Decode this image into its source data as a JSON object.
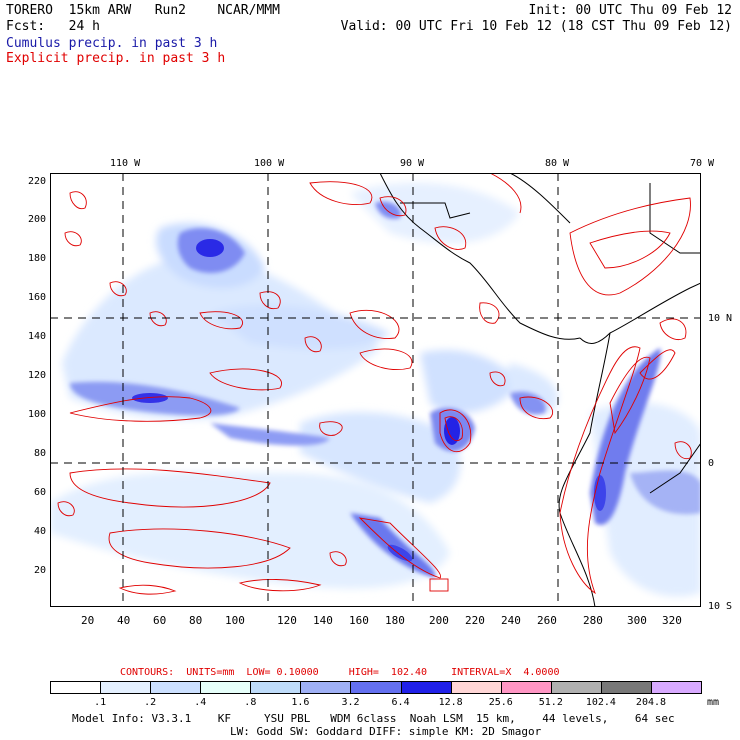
{
  "header": {
    "line1_left": "TORERO  15km ARW   Run2    NCAR/MMM",
    "line1_right": "Init: 00 UTC Thu 09 Feb 12",
    "line2_left": "Fcst:   24 h",
    "line2_right": "Valid: 00 UTC Fri 10 Feb 12 (18 CST Thu 09 Feb 12)",
    "cumulus_label": "Cumulus precip. in past 3 h",
    "explicit_label": "Explicit precip. in past 3 h"
  },
  "map": {
    "lon_labels": [
      "110 W",
      "100 W",
      "90 W",
      "80 W",
      "70 W"
    ],
    "lat_labels": [
      "10 N",
      "0",
      "10 S"
    ],
    "y_ticks": [
      "220",
      "200",
      "180",
      "160",
      "140",
      "120",
      "100",
      "80",
      "60",
      "40",
      "20"
    ],
    "x_ticks": [
      "20",
      "40",
      "60",
      "80",
      "100",
      "120",
      "140",
      "160",
      "180",
      "200",
      "220",
      "240",
      "260",
      "280",
      "300",
      "320"
    ],
    "colors": {
      "land_outline": "#000000",
      "contour": "#e00000",
      "grid": "#000000"
    }
  },
  "contour_info": "CONTOURS:  UNITS=mm  LOW= 0.10000     HIGH=  102.40    INTERVAL=X  4.0000",
  "colorbar": {
    "unit": "mm",
    "labels": [
      ".1",
      ".2",
      ".4",
      ".8",
      "1.6",
      "3.2",
      "6.4",
      "12.8",
      "25.6",
      "51.2",
      "102.4",
      "204.8"
    ],
    "colors": [
      "#ffffff",
      "#e4f0ff",
      "#cce0ff",
      "#e6fffa",
      "#bfdcfa",
      "#9fb0f5",
      "#6470f0",
      "#2020e8",
      "#ffd6d6",
      "#ff96c4",
      "#b0b0b0",
      "#787878",
      "#d8aaff"
    ]
  },
  "footer": {
    "line1": "Model Info: V3.3.1    KF     YSU PBL   WDM 6class  Noah LSM  15 km,    44 levels,    64 sec",
    "line2": "LW: Godd SW: Goddard DIFF: simple KM: 2D Smagor"
  }
}
